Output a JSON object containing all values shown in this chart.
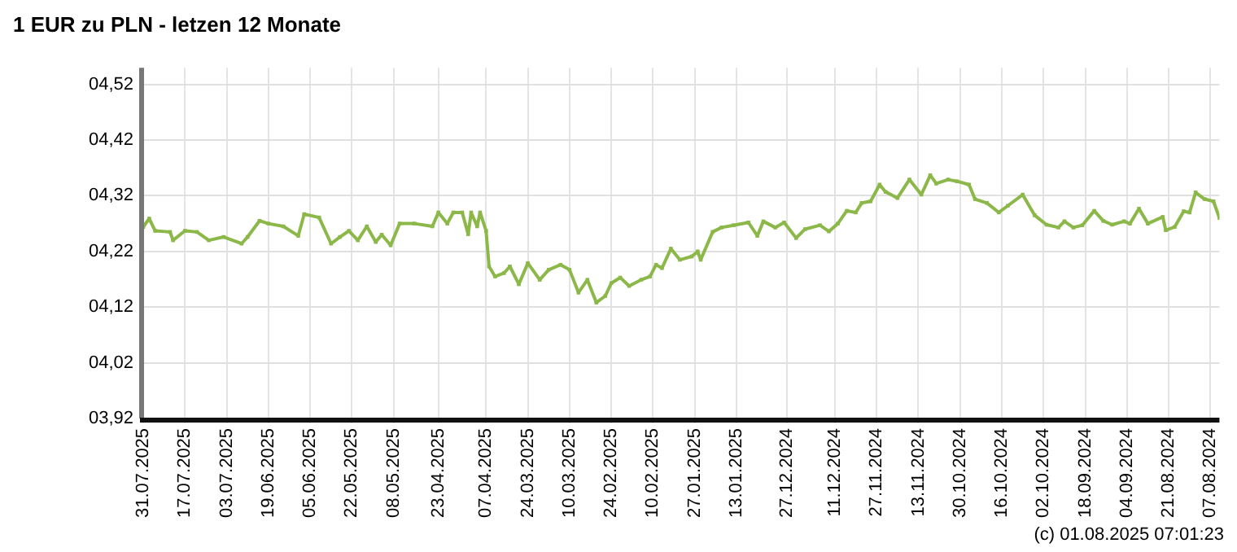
{
  "chart_data": {
    "type": "line",
    "title": "1 EUR zu PLN - letzen 12 Monate",
    "annotations": [
      "(c) 01.08.2025 07:01:23"
    ],
    "x": [
      "2025-07-31",
      "2025-07-29",
      "2025-07-27",
      "2025-07-22",
      "2025-07-21",
      "2025-07-17",
      "2025-07-13",
      "2025-07-09",
      "2025-07-04",
      "2025-06-28",
      "2025-06-26",
      "2025-06-22",
      "2025-06-19",
      "2025-06-14",
      "2025-06-09",
      "2025-06-07",
      "2025-06-02",
      "2025-05-29",
      "2025-05-26",
      "2025-05-23",
      "2025-05-20",
      "2025-05-17",
      "2025-05-14",
      "2025-05-12",
      "2025-05-09",
      "2025-05-06",
      "2025-05-01",
      "2025-04-25",
      "2025-04-23",
      "2025-04-20",
      "2025-04-18",
      "2025-04-15",
      "2025-04-13",
      "2025-04-12",
      "2025-04-10",
      "2025-04-09",
      "2025-04-07",
      "2025-04-06",
      "2025-04-04",
      "2025-04-01",
      "2025-03-30",
      "2025-03-27",
      "2025-03-24",
      "2025-03-20",
      "2025-03-17",
      "2025-03-13",
      "2025-03-10",
      "2025-03-07",
      "2025-03-04",
      "2025-03-01",
      "2025-02-26",
      "2025-02-24",
      "2025-02-21",
      "2025-02-18",
      "2025-02-14",
      "2025-02-11",
      "2025-02-09",
      "2025-02-07",
      "2025-02-04",
      "2025-02-01",
      "2025-01-28",
      "2025-01-26",
      "2025-01-25",
      "2025-01-21",
      "2025-01-18",
      "2025-01-14",
      "2025-01-09",
      "2025-01-06",
      "2025-01-04",
      "2024-12-31",
      "2024-12-28",
      "2024-12-24",
      "2024-12-21",
      "2024-12-16",
      "2024-12-13",
      "2024-12-10",
      "2024-12-07",
      "2024-12-04",
      "2024-12-02",
      "2024-11-29",
      "2024-11-26",
      "2024-11-24",
      "2024-11-20",
      "2024-11-16",
      "2024-11-12",
      "2024-11-09",
      "2024-11-07",
      "2024-11-03",
      "2024-10-31",
      "2024-10-27",
      "2024-10-25",
      "2024-10-21",
      "2024-10-17",
      "2024-10-14",
      "2024-10-09",
      "2024-10-05",
      "2024-10-01",
      "2024-09-27",
      "2024-09-25",
      "2024-09-22",
      "2024-09-19",
      "2024-09-15",
      "2024-09-12",
      "2024-09-09",
      "2024-09-05",
      "2024-09-03",
      "2024-08-31",
      "2024-08-28",
      "2024-08-23",
      "2024-08-22",
      "2024-08-19",
      "2024-08-16",
      "2024-08-14",
      "2024-08-12",
      "2024-08-09",
      "2024-08-06",
      "2024-08-04"
    ],
    "series": [
      {
        "color": "#8cb84a",
        "values": [
          4.264,
          4.279,
          4.257,
          4.255,
          4.24,
          4.257,
          4.255,
          4.24,
          4.246,
          4.234,
          4.246,
          4.275,
          4.27,
          4.265,
          4.248,
          4.287,
          4.281,
          4.234,
          4.246,
          4.257,
          4.24,
          4.265,
          4.237,
          4.25,
          4.231,
          4.27,
          4.27,
          4.265,
          4.29,
          4.27,
          4.29,
          4.29,
          4.251,
          4.29,
          4.265,
          4.29,
          4.257,
          4.193,
          4.175,
          4.181,
          4.193,
          4.161,
          4.199,
          4.169,
          4.187,
          4.196,
          4.187,
          4.146,
          4.169,
          4.128,
          4.14,
          4.163,
          4.173,
          4.158,
          4.169,
          4.175,
          4.196,
          4.19,
          4.225,
          4.205,
          4.211,
          4.22,
          4.205,
          4.255,
          4.263,
          4.267,
          4.272,
          4.248,
          4.274,
          4.263,
          4.272,
          4.244,
          4.26,
          4.267,
          4.256,
          4.27,
          4.293,
          4.29,
          4.307,
          4.31,
          4.34,
          4.327,
          4.316,
          4.349,
          4.322,
          4.357,
          4.342,
          4.349,
          4.346,
          4.34,
          4.314,
          4.307,
          4.29,
          4.302,
          4.322,
          4.285,
          4.268,
          4.263,
          4.274,
          4.263,
          4.267,
          4.293,
          4.275,
          4.268,
          4.274,
          4.27,
          4.297,
          4.27,
          4.282,
          4.258,
          4.264,
          4.292,
          4.29,
          4.326,
          4.314,
          4.31,
          4.28
        ]
      }
    ],
    "xlim": [
      "2025-07-31",
      "2024-08-04"
    ],
    "xticks": [
      {
        "value": "2025-07-31",
        "label": "31.07.2025"
      },
      {
        "value": "2025-07-17",
        "label": "17.07.2025"
      },
      {
        "value": "2025-07-03",
        "label": "03.07.2025"
      },
      {
        "value": "2025-06-19",
        "label": "19.06.2025"
      },
      {
        "value": "2025-06-05",
        "label": "05.06.2025"
      },
      {
        "value": "2025-05-22",
        "label": "22.05.2025"
      },
      {
        "value": "2025-05-08",
        "label": "08.05.2025"
      },
      {
        "value": "2025-04-23",
        "label": "23.04.2025"
      },
      {
        "value": "2025-04-07",
        "label": "07.04.2025"
      },
      {
        "value": "2025-03-24",
        "label": "24.03.2025"
      },
      {
        "value": "2025-03-10",
        "label": "10.03.2025"
      },
      {
        "value": "2025-02-24",
        "label": "24.02.2025"
      },
      {
        "value": "2025-02-10",
        "label": "10.02.2025"
      },
      {
        "value": "2025-01-27",
        "label": "27.01.2025"
      },
      {
        "value": "2025-01-13",
        "label": "13.01.2025"
      },
      {
        "value": "2024-12-27",
        "label": "27.12.2024"
      },
      {
        "value": "2024-12-11",
        "label": "11.12.2024"
      },
      {
        "value": "2024-11-27",
        "label": "27.11.2024"
      },
      {
        "value": "2024-11-13",
        "label": "13.11.2024"
      },
      {
        "value": "2024-10-30",
        "label": "30.10.2024"
      },
      {
        "value": "2024-10-16",
        "label": "16.10.2024"
      },
      {
        "value": "2024-10-02",
        "label": "02.10.2024"
      },
      {
        "value": "2024-09-18",
        "label": "18.09.2024"
      },
      {
        "value": "2024-09-04",
        "label": "04.09.2024"
      },
      {
        "value": "2024-08-21",
        "label": "21.08.2024"
      },
      {
        "value": "2024-08-07",
        "label": "07.08.2024"
      }
    ],
    "ylim": [
      3.92,
      4.55
    ],
    "yticks": [
      {
        "value": 3.92,
        "label": "03,92"
      },
      {
        "value": 4.02,
        "label": "04,02"
      },
      {
        "value": 4.12,
        "label": "04,12"
      },
      {
        "value": 4.22,
        "label": "04,22"
      },
      {
        "value": 4.32,
        "label": "04,32"
      },
      {
        "value": 4.42,
        "label": "04,42"
      },
      {
        "value": 4.52,
        "label": "04,52"
      }
    ],
    "grid": true,
    "legend": false,
    "marker": "square",
    "line_style": "solid"
  }
}
